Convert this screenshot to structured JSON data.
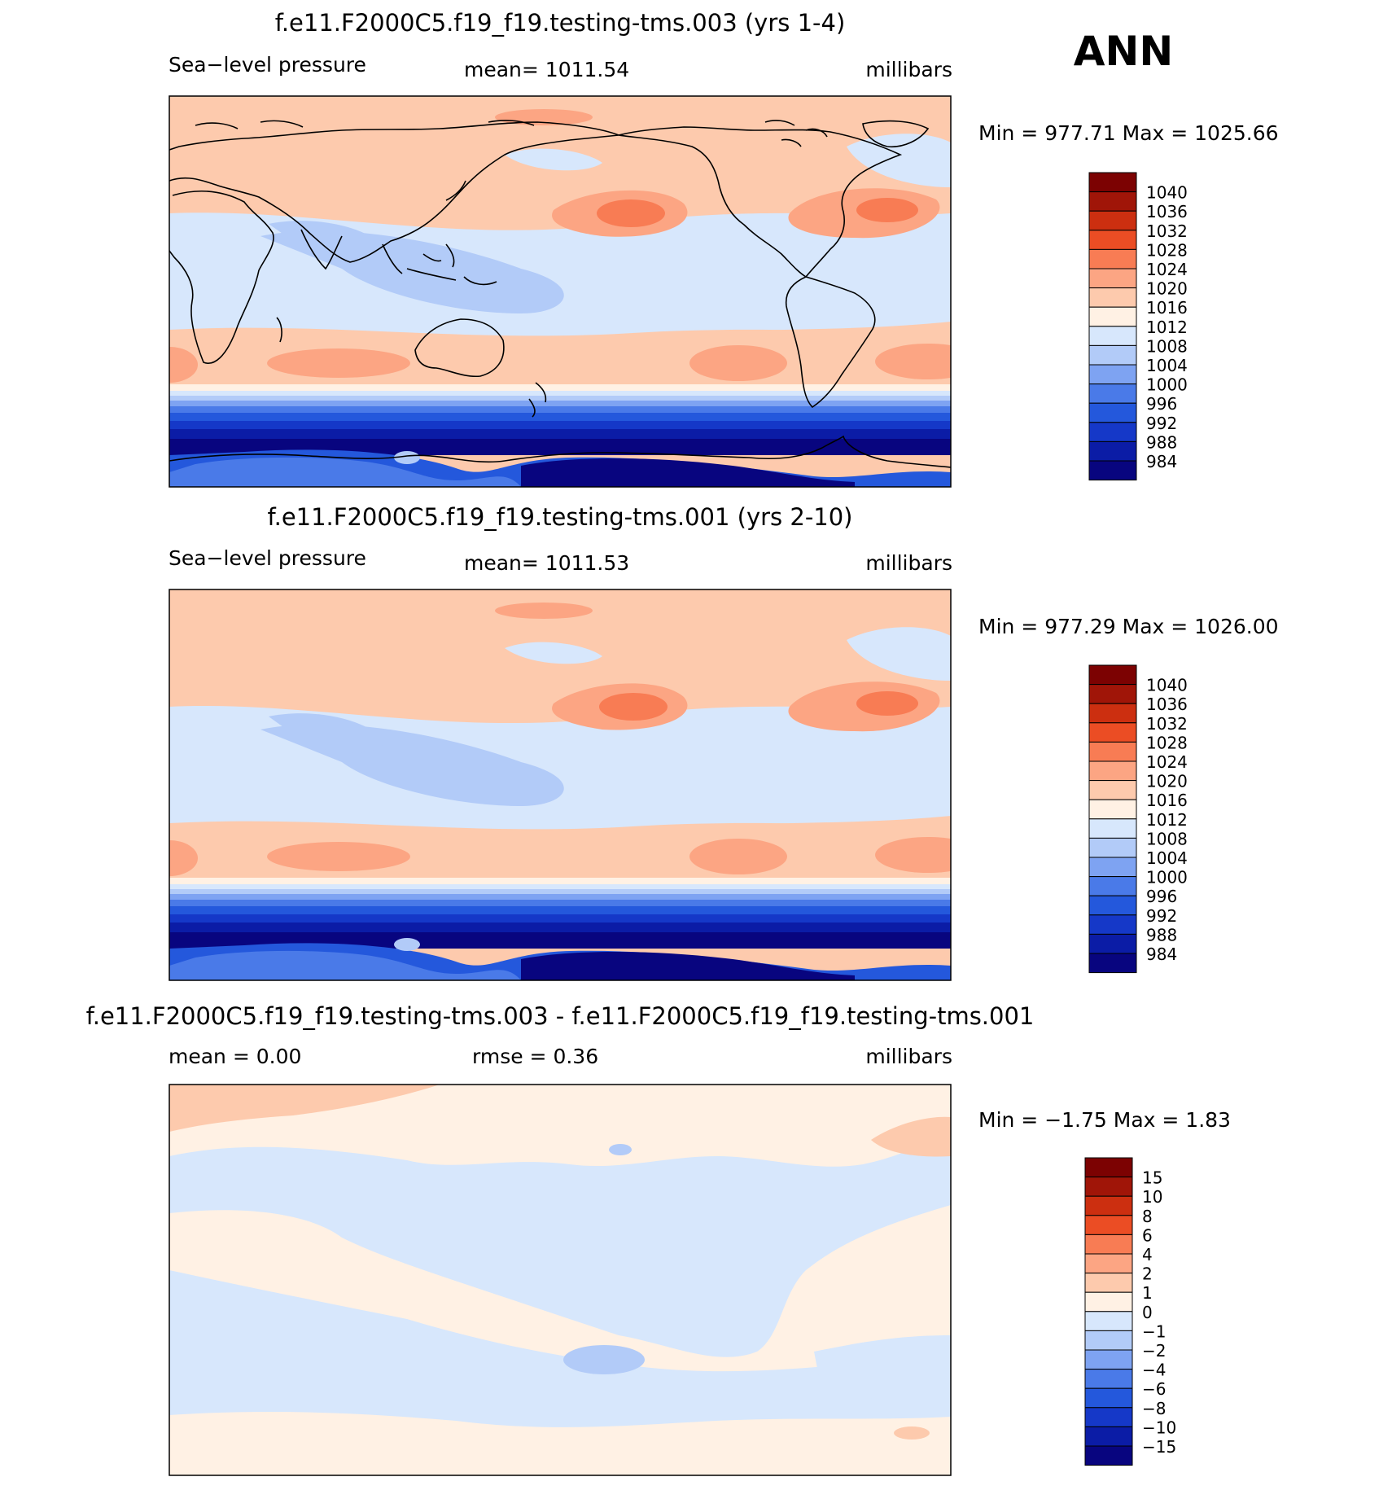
{
  "season": "ANN",
  "palettes": {
    "abs": [
      "#08057f",
      "#0b1ca6",
      "#1538c8",
      "#2458dc",
      "#4a7ae8",
      "#7ea3f2",
      "#b2cbf8",
      "#d7e7fc",
      "#fff1e4",
      "#fdcaad",
      "#fca583",
      "#f87c54",
      "#eb4d24",
      "#cc2f10",
      "#a01508",
      "#7c0202"
    ],
    "diff": [
      "#08057f",
      "#0b1ca6",
      "#1538c8",
      "#2458dc",
      "#4a7ae8",
      "#7ea3f2",
      "#b2cbf8",
      "#d7e7fc",
      "#fff1e4",
      "#fdcaad",
      "#fca583",
      "#f87c54",
      "#eb4d24",
      "#cc2f10",
      "#a01508",
      "#7c0202"
    ]
  },
  "panels": [
    {
      "title": "f.e11.F2000C5.f19_f19.testing-tms.003 (yrs 1-4)",
      "left": "Sea−level pressure",
      "mid": "mean=  1011.54",
      "right": "millibars",
      "minmax": "Min  =  977.71  Max  =  1025.66",
      "colorbar": [
        "1040",
        "1036",
        "1032",
        "1028",
        "1024",
        "1020",
        "1016",
        "1012",
        "1008",
        "1004",
        "1000",
        "996",
        "992",
        "988",
        "984"
      ],
      "palette": "abs"
    },
    {
      "title": "f.e11.F2000C5.f19_f19.testing-tms.001 (yrs 2-10)",
      "left": "Sea−level pressure",
      "mid": "mean=  1011.53",
      "right": "millibars",
      "minmax": "Min  =  977.29  Max  =  1026.00",
      "colorbar": [
        "1040",
        "1036",
        "1032",
        "1028",
        "1024",
        "1020",
        "1016",
        "1012",
        "1008",
        "1004",
        "1000",
        "996",
        "992",
        "988",
        "984"
      ],
      "palette": "abs"
    },
    {
      "title": "f.e11.F2000C5.f19_f19.testing-tms.003 - f.e11.F2000C5.f19_f19.testing-tms.001",
      "left": "mean  =      0.00",
      "mid": "rmse  =      0.36",
      "right": "millibars",
      "minmax": "Min  =    −1.75  Max  =      1.83",
      "colorbar": [
        "15",
        "10",
        "8",
        "6",
        "4",
        "2",
        "1",
        "0",
        "−1",
        "−2",
        "−4",
        "−6",
        "−8",
        "−10",
        "−15"
      ],
      "palette": "diff"
    }
  ]
}
